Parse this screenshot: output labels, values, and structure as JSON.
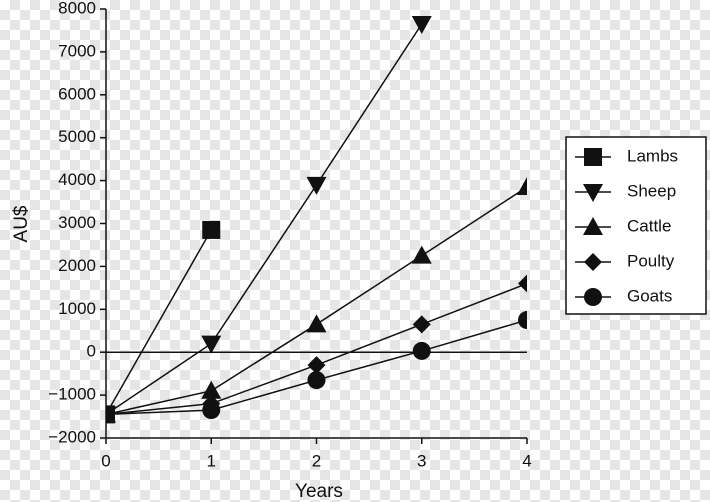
{
  "chart_data": {
    "type": "line",
    "x_label": "Years",
    "y_label": "AU$",
    "x": [
      0,
      1,
      2,
      3,
      4
    ],
    "xlim": [
      0,
      4
    ],
    "xticks": [
      0,
      1,
      2,
      3,
      4
    ],
    "ylim": [
      -2000,
      8000
    ],
    "yticks": [
      {
        "value": -2000,
        "label": "−2000"
      },
      {
        "value": -1000,
        "label": "−1000"
      },
      0,
      1000,
      2000,
      3000,
      4000,
      5000,
      6000,
      7000,
      8000
    ],
    "zero_line": true,
    "series": [
      {
        "name": "Lambs",
        "color": "#111111",
        "marker": "square",
        "values": [
          -1450,
          2850,
          null,
          null,
          null
        ]
      },
      {
        "name": "Sheep",
        "color": "#111111",
        "marker": "triangle-down",
        "values": [
          -1450,
          200,
          3900,
          7650,
          null
        ]
      },
      {
        "name": "Cattle",
        "color": "#111111",
        "marker": "triangle-up",
        "values": [
          -1450,
          -900,
          650,
          2250,
          3850
        ]
      },
      {
        "name": "Poulty",
        "color": "#111111",
        "marker": "diamond",
        "values": [
          -1450,
          -1200,
          -300,
          650,
          1600
        ]
      },
      {
        "name": "Goats",
        "color": "#111111",
        "marker": "circle",
        "values": [
          -1450,
          -1350,
          -650,
          30,
          750
        ]
      }
    ]
  }
}
